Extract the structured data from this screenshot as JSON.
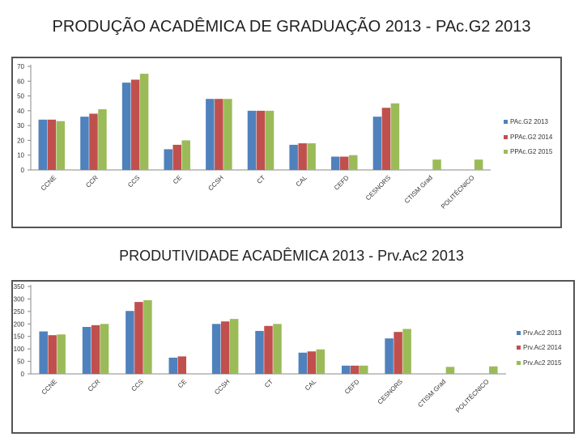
{
  "title_top": "PRODUÇÃO ACADÊMICA DE GRADUAÇÃO 2013 - PAc.G2 2013",
  "title_bottom": "PRODUTIVIDADE ACADÊMICA 2013 - Prv.Ac2 2013",
  "colors": {
    "series1": "#4f81bd",
    "series2": "#c0504d",
    "series3": "#9bbb59"
  },
  "chart_data": [
    {
      "type": "bar",
      "title": "PRODUÇÃO ACADÊMICA DE GRADUAÇÃO 2013 - PAc.G2 2013",
      "categories": [
        "CCNE",
        "CCR",
        "CCS",
        "CE",
        "CCSH",
        "CT",
        "CAL",
        "CEFD",
        "CESNORS",
        "CTISM Grad",
        "POLITÉCNICO"
      ],
      "series": [
        {
          "name": "PAc.G2 2013",
          "values": [
            34,
            36,
            59,
            14,
            48,
            40,
            17,
            9,
            36,
            null,
            null
          ]
        },
        {
          "name": "PPAc.G2 2014",
          "values": [
            34,
            38,
            61,
            17,
            48,
            40,
            18,
            9,
            42,
            null,
            null
          ]
        },
        {
          "name": "PPAc.G2 2015",
          "values": [
            33,
            41,
            65,
            20,
            48,
            40,
            18,
            10,
            45,
            7,
            7
          ]
        }
      ],
      "yticks": [
        0,
        10,
        20,
        30,
        40,
        50,
        60,
        70
      ],
      "ylim": [
        0,
        70
      ],
      "grid": false,
      "legend": "right"
    },
    {
      "type": "bar",
      "title": "PRODUTIVIDADE ACADÊMICA 2013 - Prv.Ac2 2013",
      "categories": [
        "CCNE",
        "CCR",
        "CCS",
        "CE",
        "CCSH",
        "CT",
        "CAL",
        "CEFD",
        "CESNORS",
        "CTISM Grad",
        "POLITÉCNICO"
      ],
      "series": [
        {
          "name": "Prv.Ac2 2013",
          "values": [
            170,
            188,
            252,
            65,
            200,
            172,
            85,
            33,
            142,
            null,
            null
          ]
        },
        {
          "name": "Prv.Ac2 2014",
          "values": [
            155,
            195,
            288,
            70,
            210,
            192,
            90,
            33,
            168,
            null,
            null
          ]
        },
        {
          "name": "Prv.Ac2 2015",
          "values": [
            158,
            200,
            295,
            null,
            220,
            200,
            98,
            33,
            180,
            28,
            30
          ]
        }
      ],
      "yticks": [
        0,
        50,
        100,
        150,
        200,
        250,
        300,
        350
      ],
      "ylim": [
        0,
        350
      ],
      "grid": false,
      "legend": "right"
    }
  ]
}
